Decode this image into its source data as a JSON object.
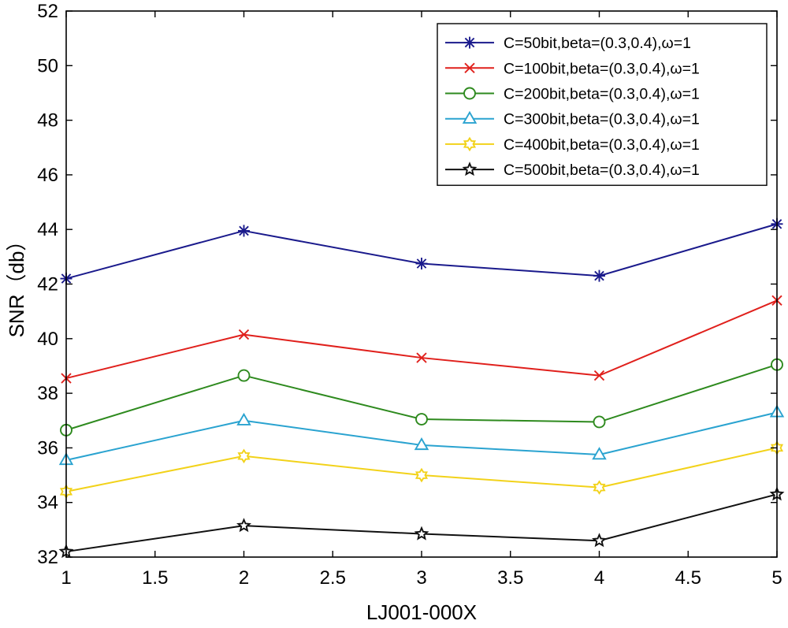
{
  "chart_data": {
    "type": "line",
    "title": "",
    "xlabel": "LJ001-000X",
    "ylabel": "SNR（db）",
    "xlim": [
      1,
      5
    ],
    "ylim": [
      32,
      52
    ],
    "xticks": [
      1,
      1.5,
      2,
      2.5,
      3,
      3.5,
      4,
      4.5,
      5
    ],
    "xtick_labels": [
      "1",
      "1.5",
      "2",
      "2.5",
      "3",
      "3.5",
      "4",
      "4.5",
      "5"
    ],
    "yticks": [
      32,
      34,
      36,
      38,
      40,
      42,
      44,
      46,
      48,
      50,
      52
    ],
    "ytick_labels": [
      "32",
      "34",
      "36",
      "38",
      "40",
      "42",
      "44",
      "46",
      "48",
      "50",
      "52"
    ],
    "grid": false,
    "legend_position": "top-right",
    "x": [
      1,
      2,
      3,
      4,
      5
    ],
    "series": [
      {
        "name": "C=50bit,beta=(0.3,0.4),ω=1",
        "color": "#1a1a8c",
        "marker": "asterisk",
        "values": [
          42.2,
          43.95,
          42.75,
          42.3,
          44.2
        ]
      },
      {
        "name": "C=100bit,beta=(0.3,0.4),ω=1",
        "color": "#e0201c",
        "marker": "x",
        "values": [
          38.55,
          40.15,
          39.3,
          38.65,
          41.4
        ]
      },
      {
        "name": "C=200bit,beta=(0.3,0.4),ω=1",
        "color": "#2e8a1e",
        "marker": "circle",
        "values": [
          36.65,
          38.65,
          37.05,
          36.95,
          39.05
        ]
      },
      {
        "name": "C=300bit,beta=(0.3,0.4),ω=1",
        "color": "#2aa3d0",
        "marker": "triangle",
        "values": [
          35.55,
          37.0,
          36.1,
          35.75,
          37.3
        ]
      },
      {
        "name": "C=400bit,beta=(0.3,0.4),ω=1",
        "color": "#f2d21a",
        "marker": "hexagram",
        "values": [
          34.4,
          35.7,
          35.0,
          34.55,
          36.0
        ]
      },
      {
        "name": "C=500bit,beta=(0.3,0.4),ω=1",
        "color": "#111111",
        "marker": "pentagram",
        "values": [
          32.2,
          33.15,
          32.85,
          32.6,
          34.3
        ]
      }
    ]
  }
}
